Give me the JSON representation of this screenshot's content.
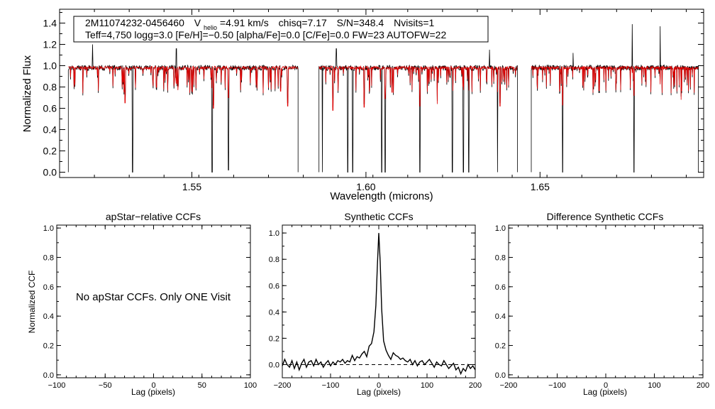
{
  "header": {
    "line1": {
      "star_id": "2M11074232-0456460",
      "v_label": "V",
      "v_sub": "helio",
      "v_value": "=4.91 km/s",
      "chisq": "chisq=7.17",
      "snr": "S/N=348.4",
      "nvisits": "Nvisits=1"
    },
    "line2": "Teff=4,750 logg=3.0 [Fe/H]=−0.50 [alpha/Fe]=0.0 [C/Fe]=0.0 FW=23 AUTOFW=22"
  },
  "colors": {
    "observed": "#000000",
    "model": "#e00000",
    "zero_line": "#000000"
  },
  "chart_data": [
    {
      "id": "spectrum",
      "type": "line",
      "xlabel": "Wavelength (microns)",
      "ylabel": "Normalized Flux",
      "xlim": [
        1.512,
        1.697
      ],
      "ylim": [
        -0.05,
        1.53
      ],
      "xticks": [
        1.55,
        1.6,
        1.65
      ],
      "xtick_labels": [
        "1.55",
        "1.60",
        "1.65"
      ],
      "yticks": [
        0.0,
        0.2,
        0.4,
        0.6,
        0.8,
        1.0,
        1.2,
        1.4
      ],
      "ytick_labels": [
        "0.0",
        "0.2",
        "0.4",
        "0.6",
        "0.8",
        "1.0",
        "1.2",
        "1.4"
      ],
      "chip_ranges": [
        [
          1.5145,
          1.5805
        ],
        [
          1.5865,
          1.6435
        ],
        [
          1.6475,
          1.6955
        ]
      ],
      "continuum": 0.98,
      "deep_lines": [
        [
          1.533,
          0.0
        ],
        [
          1.5558,
          0.0
        ],
        [
          1.5605,
          0.02
        ],
        [
          1.5875,
          0.0
        ],
        [
          1.5948,
          0.0
        ],
        [
          1.5962,
          0.0
        ],
        [
          1.6045,
          0.0
        ],
        [
          1.6055,
          0.0
        ],
        [
          1.6155,
          0.0
        ],
        [
          1.6248,
          0.0
        ],
        [
          1.628,
          0.0
        ],
        [
          1.6295,
          0.0
        ],
        [
          1.6378,
          0.0
        ],
        [
          1.6565,
          0.0
        ],
        [
          1.677,
          0.0
        ]
      ],
      "model_lines": [
        [
          1.5308,
          0.65
        ],
        [
          1.546,
          0.77
        ],
        [
          1.5562,
          0.6
        ],
        [
          1.5605,
          0.7
        ],
        [
          1.5755,
          0.76
        ],
        [
          1.5775,
          0.62
        ],
        [
          1.5905,
          0.58
        ],
        [
          1.5995,
          0.61
        ],
        [
          1.6055,
          0.69
        ],
        [
          1.6075,
          0.75
        ],
        [
          1.6155,
          0.62
        ],
        [
          1.6205,
          0.64
        ],
        [
          1.6385,
          0.62
        ],
        [
          1.6565,
          0.63
        ],
        [
          1.677,
          0.72
        ],
        [
          1.6905,
          0.68
        ]
      ],
      "spikes": [
        [
          1.5215,
          1.2
        ],
        [
          1.5455,
          1.16
        ],
        [
          1.5915,
          1.16
        ],
        [
          1.6355,
          1.15
        ],
        [
          1.6595,
          1.12
        ],
        [
          1.6765,
          1.39
        ],
        [
          1.6845,
          1.37
        ]
      ],
      "series": [
        {
          "name": "observed",
          "color": "#000000"
        },
        {
          "name": "model",
          "color": "#e00000"
        }
      ]
    },
    {
      "id": "apstar-ccf",
      "type": "line",
      "title": "apStar−relative CCFs",
      "xlabel": "Lag (pixels)",
      "ylabel": "Normalized CCF",
      "xlim": [
        -100,
        100
      ],
      "ylim": [
        -0.02,
        1.02
      ],
      "xticks": [
        -100,
        -50,
        0,
        50,
        100
      ],
      "xtick_labels": [
        "−100",
        "−50",
        "0",
        "50",
        "100"
      ],
      "yticks": [
        0.0,
        0.2,
        0.4,
        0.6,
        0.8,
        1.0
      ],
      "ytick_labels": [
        "0.0",
        "0.2",
        "0.4",
        "0.6",
        "0.8",
        "1.0"
      ],
      "message": "No apStar CCFs.  Only ONE Visit",
      "series": []
    },
    {
      "id": "synthetic-ccf",
      "type": "line",
      "title": "Synthetic CCFs",
      "xlabel": "Lag (pixels)",
      "xlim": [
        -200,
        200
      ],
      "ylim": [
        -0.1,
        1.06
      ],
      "xticks": [
        -200,
        -100,
        0,
        100,
        200
      ],
      "xtick_labels": [
        "−200",
        "−100",
        "0",
        "100",
        "200"
      ],
      "yticks": [
        0.0,
        0.2,
        0.4,
        0.6,
        0.8,
        1.0
      ],
      "ytick_labels": [
        "0.0",
        "0.2",
        "0.4",
        "0.6",
        "0.8",
        "1.0"
      ],
      "zero_line": 0.0,
      "peak": {
        "lag": 0,
        "value": 1.0
      },
      "series": [
        {
          "name": "ccf",
          "x": [
            -200,
            -195,
            -190,
            -185,
            -180,
            -175,
            -170,
            -165,
            -160,
            -155,
            -150,
            -145,
            -140,
            -135,
            -130,
            -125,
            -120,
            -115,
            -110,
            -105,
            -100,
            -95,
            -90,
            -85,
            -80,
            -75,
            -70,
            -65,
            -60,
            -55,
            -50,
            -45,
            -40,
            -35,
            -30,
            -25,
            -20,
            -15,
            -10,
            -6,
            -3,
            0,
            3,
            6,
            10,
            15,
            20,
            25,
            30,
            35,
            40,
            45,
            50,
            55,
            60,
            65,
            70,
            75,
            80,
            85,
            90,
            95,
            100,
            105,
            110,
            115,
            120,
            125,
            130,
            135,
            140,
            145,
            150,
            155,
            160,
            165,
            170,
            175,
            180,
            185,
            190,
            195,
            200
          ],
          "values": [
            -0.01,
            0.04,
            0.0,
            -0.02,
            0.03,
            -0.03,
            0.02,
            -0.04,
            0.01,
            0.04,
            -0.02,
            0.02,
            0.03,
            -0.01,
            0.04,
            0.0,
            0.02,
            -0.02,
            0.01,
            0.03,
            -0.01,
            0.02,
            0.0,
            0.03,
            0.02,
            0.04,
            0.01,
            0.03,
            0.02,
            0.07,
            0.03,
            0.06,
            0.05,
            0.08,
            0.1,
            0.06,
            0.14,
            0.16,
            0.25,
            0.45,
            0.75,
            1.0,
            0.78,
            0.42,
            0.18,
            0.11,
            0.07,
            0.04,
            0.09,
            0.07,
            0.06,
            0.04,
            0.05,
            0.03,
            0.02,
            0.04,
            0.0,
            0.03,
            -0.01,
            0.02,
            0.03,
            0.0,
            0.02,
            0.04,
            0.01,
            -0.02,
            0.02,
            0.0,
            -0.01,
            0.03,
            0.0,
            -0.03,
            -0.01,
            0.01,
            -0.04,
            -0.02,
            -0.07,
            -0.03,
            -0.05,
            0.0,
            -0.03,
            -0.01,
            -0.04
          ]
        }
      ]
    },
    {
      "id": "difference-ccf",
      "type": "line",
      "title": "Difference Synthetic CCFs",
      "xlabel": "Lag (pixels)",
      "xlim": [
        -200,
        200
      ],
      "ylim": [
        -0.02,
        1.02
      ],
      "xticks": [
        -200,
        -100,
        0,
        100,
        200
      ],
      "xtick_labels": [
        "−200",
        "−100",
        "0",
        "100",
        "200"
      ],
      "yticks": [
        0.0,
        0.2,
        0.4,
        0.6,
        0.8,
        1.0
      ],
      "ytick_labels": [
        "0.0",
        "0.2",
        "0.4",
        "0.6",
        "0.8",
        "1.0"
      ],
      "series": []
    }
  ]
}
